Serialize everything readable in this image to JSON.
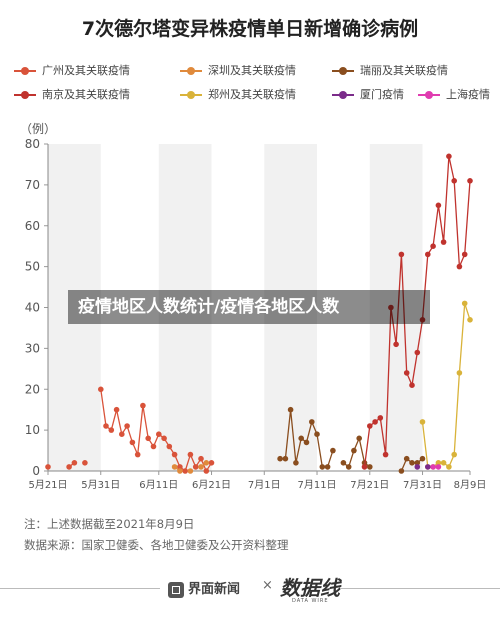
{
  "title": "7次德尔塔变异株疫情单日新增确诊病例",
  "y_unit": "（例）",
  "banner": "疫情地区人数统计/疫情各地区人数",
  "notes": {
    "line1": "注：上述数据截至2021年8月9日",
    "line2": "数据来源：国家卫健委、各地卫健委及公开资料整理"
  },
  "footer": {
    "brand": "界面新闻",
    "cross": "×",
    "logo": "数据线",
    "logo_sub": "DATA WIRE"
  },
  "chart_data": {
    "type": "line",
    "title": "7次德尔塔变异株疫情单日新增确诊病例",
    "ylabel": "（例）",
    "ylim": [
      0,
      80
    ],
    "yticks": [
      0,
      10,
      20,
      30,
      40,
      50,
      60,
      70,
      80
    ],
    "x_start": "2021-05-21",
    "x_end": "2021-08-09",
    "xticks": [
      "5月21日",
      "5月31日",
      "6月11日",
      "6月21日",
      "7月1日",
      "7月11日",
      "7月21日",
      "7月31日",
      "8月9日"
    ],
    "xtick_dates": [
      "2021-05-21",
      "2021-05-31",
      "2021-06-11",
      "2021-06-21",
      "2021-07-01",
      "2021-07-11",
      "2021-07-21",
      "2021-07-31",
      "2021-08-09"
    ],
    "grid": false,
    "legend_position": "top",
    "series": [
      {
        "name": "广州及其关联疫情",
        "color": "#d9533a",
        "start": "2021-05-21",
        "values": [
          1,
          null,
          null,
          null,
          1,
          2,
          null,
          2,
          null,
          null,
          20,
          11,
          10,
          15,
          9,
          11,
          7,
          4,
          16,
          8,
          6,
          9,
          8,
          6,
          4,
          1,
          0,
          4,
          1,
          3,
          0,
          2
        ]
      },
      {
        "name": "深圳及其关联疫情",
        "color": "#e08a3c",
        "start": "2021-06-14",
        "values": [
          1,
          0,
          null,
          0,
          null,
          1,
          2
        ]
      },
      {
        "name": "瑞丽及其关联疫情",
        "color": "#8a4e1f",
        "start": "2021-07-04",
        "values": [
          3,
          3,
          15,
          2,
          8,
          7,
          12,
          9,
          1,
          1,
          5,
          null,
          2,
          1,
          5,
          8,
          2,
          1,
          null,
          null,
          null,
          null,
          null,
          0,
          3,
          2,
          2,
          3
        ]
      },
      {
        "name": "南京及其关联疫情",
        "color": "#c0332e",
        "start": "2021-07-20",
        "values": [
          1,
          11,
          12,
          13,
          4,
          40,
          31,
          53,
          24,
          21,
          29,
          37,
          53,
          55,
          65,
          56,
          77,
          71,
          50,
          53,
          71
        ]
      },
      {
        "name": "郑州及其关联疫情",
        "color": "#d9b33a",
        "start": "2021-07-31",
        "values": [
          12,
          1,
          1,
          2,
          2,
          1,
          4,
          24,
          41,
          37
        ]
      },
      {
        "name": "厦门疫情",
        "color": "#7b2c8a",
        "start": "2021-07-30",
        "values": [
          1,
          null,
          1
        ]
      },
      {
        "name": "上海疫情",
        "color": "#e03cb0",
        "start": "2021-08-02",
        "values": [
          1,
          1
        ]
      }
    ]
  }
}
